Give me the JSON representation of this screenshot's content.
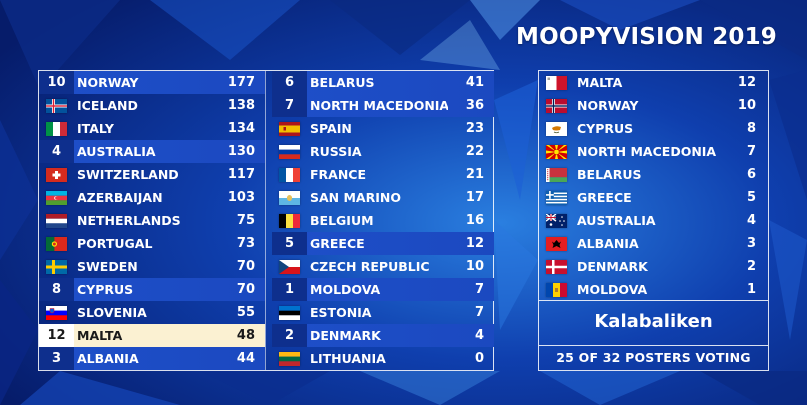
{
  "title": "MOOPYVISION 2019",
  "colors": {
    "background": "#0a2e8c",
    "highlight_row": "#1e4fc9",
    "current_voter_row": "#fbf1d2"
  },
  "scoreboard": {
    "left_column": [
      {
        "points": "10",
        "flag": "norway-flag",
        "country": "NORWAY",
        "total": "177"
      },
      {
        "points": "",
        "flag": "iceland-flag",
        "country": "ICELAND",
        "total": "138"
      },
      {
        "points": "",
        "flag": "italy-flag",
        "country": "ITALY",
        "total": "134"
      },
      {
        "points": "4",
        "flag": "australia-flag",
        "country": "AUSTRALIA",
        "total": "130"
      },
      {
        "points": "",
        "flag": "switzerland-flag",
        "country": "SWITZERLAND",
        "total": "117"
      },
      {
        "points": "",
        "flag": "azerbaijan-flag",
        "country": "AZERBAIJAN",
        "total": "103"
      },
      {
        "points": "",
        "flag": "netherlands-flag",
        "country": "NETHERLANDS",
        "total": "75"
      },
      {
        "points": "",
        "flag": "portugal-flag",
        "country": "PORTUGAL",
        "total": "73"
      },
      {
        "points": "",
        "flag": "sweden-flag",
        "country": "SWEDEN",
        "total": "70"
      },
      {
        "points": "8",
        "flag": "cyprus-flag",
        "country": "CYPRUS",
        "total": "70"
      },
      {
        "points": "",
        "flag": "slovenia-flag",
        "country": "SLOVENIA",
        "total": "55"
      },
      {
        "points": "12",
        "flag": "malta-flag",
        "country": "MALTA",
        "total": "48"
      },
      {
        "points": "3",
        "flag": "albania-flag",
        "country": "ALBANIA",
        "total": "44"
      }
    ],
    "right_column": [
      {
        "points": "6",
        "flag": "belarus-flag",
        "country": "BELARUS",
        "total": "41"
      },
      {
        "points": "7",
        "flag": "north-macedonia-flag",
        "country": "NORTH MACEDONIA",
        "total": "36"
      },
      {
        "points": "",
        "flag": "spain-flag",
        "country": "SPAIN",
        "total": "23"
      },
      {
        "points": "",
        "flag": "russia-flag",
        "country": "RUSSIA",
        "total": "22"
      },
      {
        "points": "",
        "flag": "france-flag",
        "country": "FRANCE",
        "total": "21"
      },
      {
        "points": "",
        "flag": "san-marino-flag",
        "country": "SAN MARINO",
        "total": "17"
      },
      {
        "points": "",
        "flag": "belgium-flag",
        "country": "BELGIUM",
        "total": "16"
      },
      {
        "points": "5",
        "flag": "greece-flag",
        "country": "GREECE",
        "total": "12"
      },
      {
        "points": "",
        "flag": "czech-flag",
        "country": "CZECH REPUBLIC",
        "total": "10"
      },
      {
        "points": "1",
        "flag": "moldova-flag",
        "country": "MOLDOVA",
        "total": "7"
      },
      {
        "points": "",
        "flag": "estonia-flag",
        "country": "ESTONIA",
        "total": "7"
      },
      {
        "points": "2",
        "flag": "denmark-flag",
        "country": "DENMARK",
        "total": "4"
      },
      {
        "points": "",
        "flag": "lithuania-flag",
        "country": "LITHUANIA",
        "total": "0"
      }
    ]
  },
  "voter_panel": {
    "votes": [
      {
        "flag": "malta-flag",
        "country": "MALTA",
        "points": "12"
      },
      {
        "flag": "norway-flag",
        "country": "NORWAY",
        "points": "10"
      },
      {
        "flag": "cyprus-flag",
        "country": "CYPRUS",
        "points": "8"
      },
      {
        "flag": "north-macedonia-flag",
        "country": "NORTH MACEDONIA",
        "points": "7"
      },
      {
        "flag": "belarus-flag",
        "country": "BELARUS",
        "points": "6"
      },
      {
        "flag": "greece-flag",
        "country": "GREECE",
        "points": "5"
      },
      {
        "flag": "australia-flag",
        "country": "AUSTRALIA",
        "points": "4"
      },
      {
        "flag": "albania-flag",
        "country": "ALBANIA",
        "points": "3"
      },
      {
        "flag": "denmark-flag",
        "country": "DENMARK",
        "points": "2"
      },
      {
        "flag": "moldova-flag",
        "country": "MOLDOVA",
        "points": "1"
      }
    ],
    "voter_name": "Kalabaliken",
    "voting_status": "25 OF 32 POSTERS VOTING"
  }
}
